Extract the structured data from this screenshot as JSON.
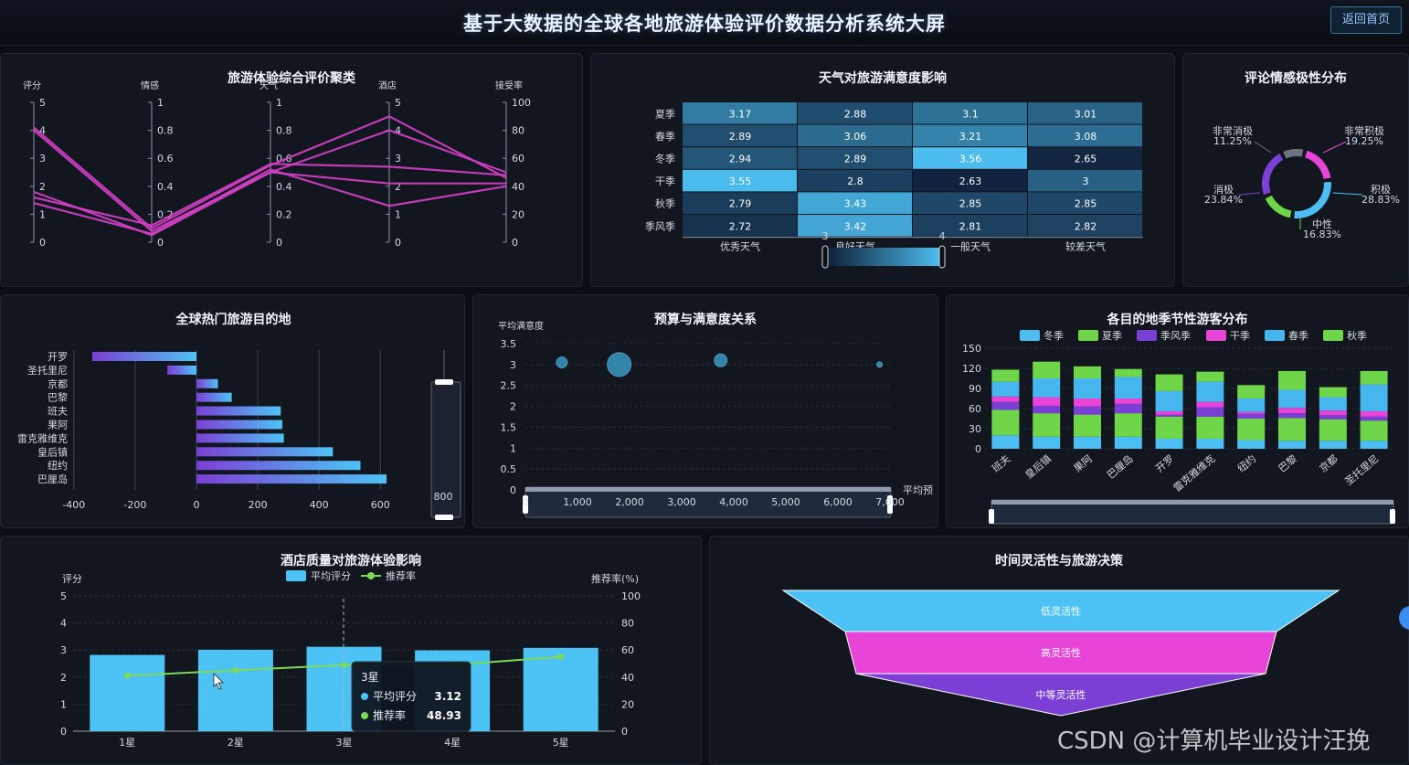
{
  "header": {
    "title": "基于大数据的全球各地旅游体验评价数据分析系统大屏",
    "home_button": "返回首页"
  },
  "parallel": {
    "title": "旅游体验综合评价聚类",
    "color": "#d63fc8",
    "axes": [
      {
        "name": "评分",
        "min": 0,
        "max": 5,
        "ticks": [
          "0",
          "1",
          "2",
          "3",
          "4",
          "5"
        ]
      },
      {
        "name": "情感",
        "min": 0,
        "max": 1,
        "ticks": [
          "0",
          "0.2",
          "0.4",
          "0.6",
          "0.8",
          "1"
        ]
      },
      {
        "name": "天气",
        "min": 0,
        "max": 1,
        "ticks": [
          "0",
          "0.2",
          "0.4",
          "0.6",
          "0.8",
          "1"
        ]
      },
      {
        "name": "酒店",
        "min": 0,
        "max": 5,
        "ticks": [
          "0",
          "1",
          "2",
          "3",
          "4",
          "5"
        ]
      },
      {
        "name": "接受率",
        "min": 0,
        "max": 100,
        "ticks": [
          "0",
          "20",
          "40",
          "60",
          "80",
          "100"
        ]
      }
    ],
    "lines": [
      [
        4.1,
        0.1,
        0.55,
        4.5,
        46
      ],
      [
        4.0,
        0.08,
        0.5,
        4.0,
        50
      ],
      [
        1.8,
        0.05,
        0.5,
        2.1,
        42
      ],
      [
        1.6,
        0.12,
        0.56,
        2.7,
        48
      ],
      [
        1.4,
        0.06,
        0.52,
        1.3,
        40
      ]
    ]
  },
  "heatmap": {
    "title": "天气对旅游满意度影响",
    "rows": [
      "夏季",
      "春季",
      "冬季",
      "干季",
      "秋季",
      "季风季"
    ],
    "cols": [
      "优秀天气",
      "良好天气",
      "一般天气",
      "较差天气"
    ],
    "values": [
      [
        "3.17",
        "2.88",
        "3.1",
        "3.01"
      ],
      [
        "2.89",
        "3.06",
        "3.21",
        "3.08"
      ],
      [
        "2.94",
        "2.89",
        "3.56",
        "2.65"
      ],
      [
        "3.55",
        "2.8",
        "2.63",
        "3"
      ],
      [
        "2.79",
        "3.43",
        "2.85",
        "2.85"
      ],
      [
        "2.72",
        "3.42",
        "2.81",
        "2.82"
      ]
    ],
    "visual_map": {
      "min_label": "3",
      "max_label": "4"
    },
    "colors": {
      "low": "#0f1e38",
      "high": "#4dc3f5"
    }
  },
  "sentiment": {
    "title": "评论情感极性分布",
    "slices": [
      {
        "name": "非常积极",
        "percent": "19.25%",
        "value": 19.25,
        "color": "#e845d8"
      },
      {
        "name": "积极",
        "percent": "28.83%",
        "value": 28.83,
        "color": "#4dbef2"
      },
      {
        "name": "中性",
        "percent": "16.83%",
        "value": 16.83,
        "color": "#6fd64a"
      },
      {
        "name": "消极",
        "percent": "23.84%",
        "value": 23.84,
        "color": "#7c3fd6"
      },
      {
        "name": "非常消极",
        "percent": "11.25%",
        "value": 11.25,
        "color": "#6d7480"
      }
    ]
  },
  "destinations": {
    "title": "全球热门旅游目的地",
    "chart_data": {
      "type": "bar",
      "categories": [
        "开罗",
        "圣托里尼",
        "京都",
        "巴黎",
        "班夫",
        "果阿",
        "雷克雅维克",
        "皇后镇",
        "纽约",
        "巴厘岛"
      ],
      "values": [
        -340,
        -95,
        70,
        115,
        275,
        280,
        285,
        445,
        535,
        620
      ],
      "xticks": [
        "-400",
        "-200",
        "0",
        "200",
        "400",
        "600"
      ],
      "xlim": [
        -400,
        620
      ]
    },
    "slider_label": "800"
  },
  "budget": {
    "title": "预算与满意度关系",
    "ylabel": "平均满意度",
    "xlabel": "平均预",
    "chart_data": {
      "type": "scatter",
      "points": [
        {
          "x": 700,
          "y": 3.05,
          "size": 6
        },
        {
          "x": 1800,
          "y": 3.0,
          "size": 13
        },
        {
          "x": 3750,
          "y": 3.1,
          "size": 7
        },
        {
          "x": 6800,
          "y": 3.0,
          "size": 3
        }
      ],
      "yticks": [
        "0",
        "0.5",
        "1",
        "1.5",
        "2",
        "2.5",
        "3",
        "3.5"
      ],
      "xticks": [
        "0",
        "1,000",
        "2,000",
        "3,000",
        "4,000",
        "5,000",
        "6,000",
        "7,000"
      ],
      "xlim": [
        0,
        7000
      ],
      "ylim": [
        0,
        3.5
      ]
    }
  },
  "seasonal": {
    "title": "各目的地季节性游客分布",
    "chart_data": {
      "type": "bar",
      "categories": [
        "班夫",
        "皇后镇",
        "果阿",
        "巴厘岛",
        "开罗",
        "雷克雅维克",
        "纽约",
        "巴黎",
        "京都",
        "圣托里尼"
      ],
      "yticks": [
        "0",
        "30",
        "60",
        "90",
        "120",
        "150"
      ],
      "ylim": [
        0,
        150
      ],
      "series": [
        {
          "name": "冬季",
          "color": "#4dbef2",
          "values": [
            20,
            18,
            18,
            18,
            15,
            15,
            13,
            12,
            12,
            12
          ]
        },
        {
          "name": "夏季",
          "color": "#6fd64a",
          "values": [
            38,
            35,
            33,
            35,
            33,
            33,
            32,
            34,
            32,
            30
          ]
        },
        {
          "name": "季风季",
          "color": "#7c3fd6",
          "values": [
            12,
            11,
            12,
            14,
            3,
            14,
            7,
            7,
            6,
            6
          ]
        },
        {
          "name": "干季",
          "color": "#e845d8",
          "values": [
            8,
            13,
            12,
            8,
            5,
            8,
            3,
            8,
            7,
            8
          ]
        },
        {
          "name": "春季",
          "color": "#46b6ee",
          "values": [
            22,
            28,
            30,
            32,
            30,
            30,
            20,
            27,
            20,
            40
          ]
        },
        {
          "name": "秋季",
          "color": "#6fd64a",
          "values": [
            18,
            25,
            18,
            12,
            25,
            15,
            20,
            28,
            15,
            20
          ]
        }
      ]
    }
  },
  "hotel": {
    "title": "酒店质量对旅游体验影响",
    "legend_bar": "平均评分",
    "legend_line": "推荐率",
    "ylabel_left": "评分",
    "ylabel_right": "推荐率(%)",
    "chart_data": {
      "type": "bar",
      "categories": [
        "1星",
        "2星",
        "3星",
        "4星",
        "5星"
      ],
      "series": [
        {
          "name": "平均评分",
          "values": [
            2.82,
            3.01,
            3.12,
            2.99,
            3.08
          ]
        },
        {
          "name": "推荐率",
          "values": [
            41,
            45,
            48.93,
            49,
            55
          ]
        }
      ],
      "yticks_left": [
        "0",
        "1",
        "2",
        "3",
        "4",
        "5"
      ],
      "yticks_right": [
        "0",
        "20",
        "40",
        "60",
        "80",
        "100"
      ]
    },
    "tooltip": {
      "title": "3星",
      "row1_label": "平均评分",
      "row1_value": "3.12",
      "row2_label": "推荐率",
      "row2_value": "48.93"
    },
    "colors": {
      "bar": "#4dc3f5",
      "line": "#7ed957"
    }
  },
  "funnel": {
    "title": "时间灵活性与旅游决策",
    "levels": [
      {
        "name": "低灵活性",
        "color": "#4dc3f5"
      },
      {
        "name": "高灵活性",
        "color": "#e845d8"
      },
      {
        "name": "中等灵活性",
        "color": "#7c3fd6"
      }
    ]
  },
  "watermark": "CSDN @计算机毕业设计汪挽"
}
